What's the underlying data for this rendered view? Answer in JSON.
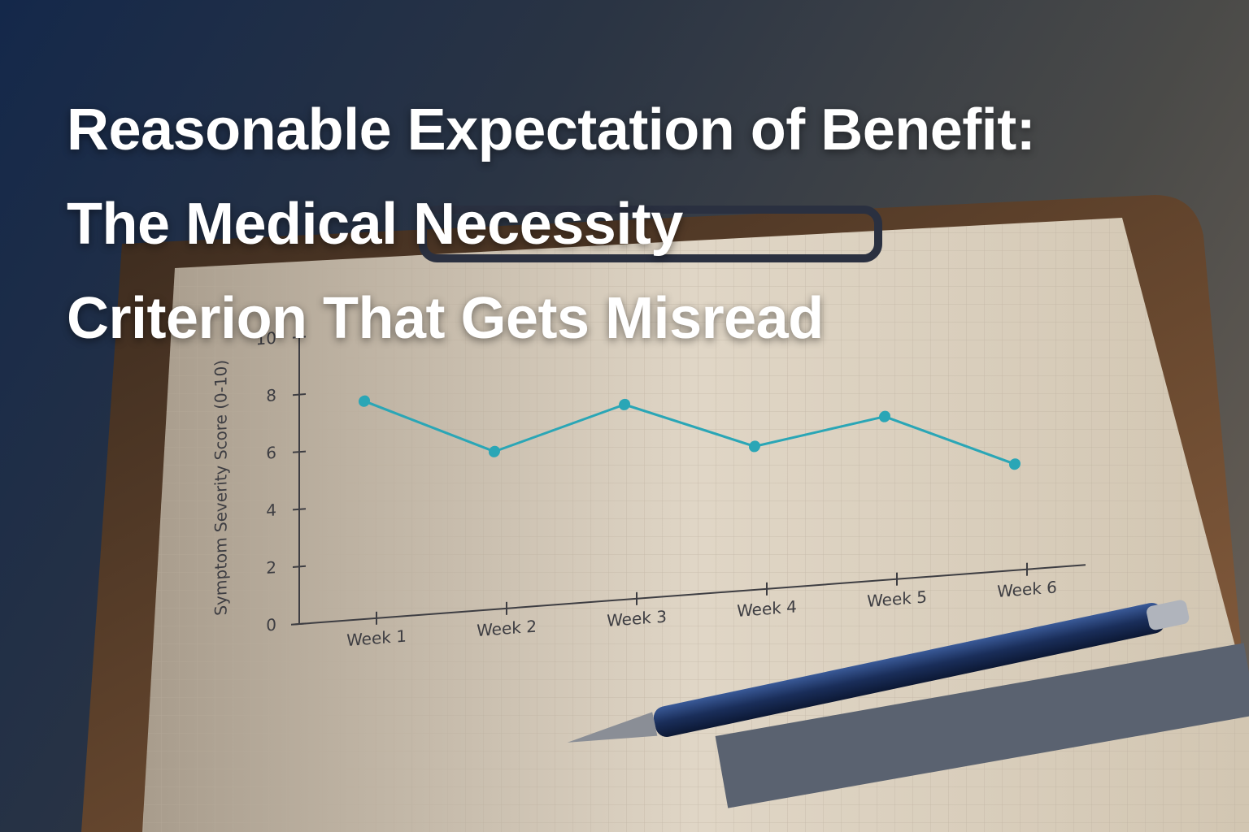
{
  "chart_data": {
    "type": "line",
    "title": [
      "Reasonable Expectation of Benefit:",
      "The Medical Necessity",
      "Criterion That Gets Misread"
    ],
    "y_label": "Symptom Severity Score (0-10)",
    "categories": [
      "Week 1",
      "Week 2",
      "Week 3",
      "Week 4",
      "Week 5",
      "Week 6"
    ],
    "values": [
      7.6,
      5.5,
      6.8,
      5.0,
      5.7,
      3.7
    ],
    "color": "#2aa6b6",
    "ylim": [
      0,
      10
    ],
    "yticks": [
      0,
      2,
      4,
      6,
      8,
      10
    ]
  }
}
